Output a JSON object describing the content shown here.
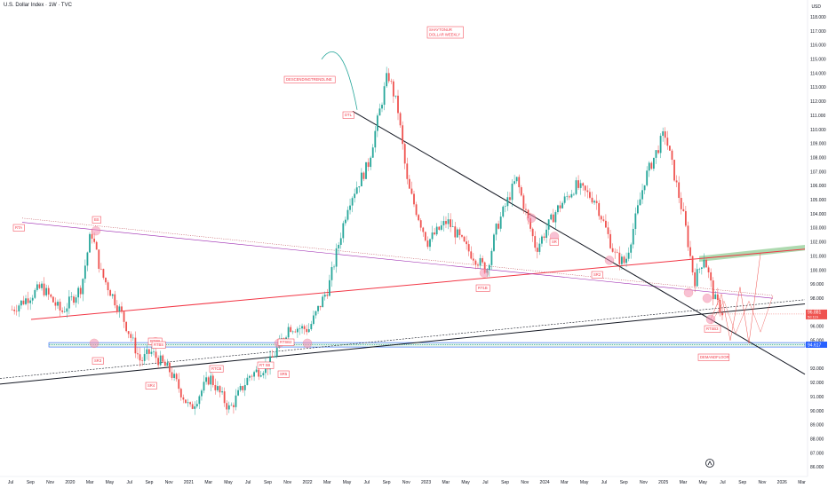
{
  "header": {
    "symbol_line": "U.S. Dollar Index · 1W · TVC"
  },
  "axis": {
    "currency": "USD"
  },
  "colors": {
    "bull": "#26a69a",
    "bear": "#ef5350",
    "trend_black": "#131722",
    "trend_red": "#f23645",
    "accent_red": "#f23645",
    "accent_blue": "#2962ff",
    "green_zone": "#a5d6a7"
  },
  "chart_data": {
    "type": "candlestick",
    "title": "U.S. Dollar Index · 1W · TVC",
    "ylim": [
      85.5,
      118.8
    ],
    "xlim": [
      "2019-07",
      "2026-03"
    ],
    "y_ticks": [
      "86.000",
      "87.000",
      "88.000",
      "89.000",
      "90.000",
      "91.000",
      "92.000",
      "93.000",
      "95.000",
      "96.000",
      "97.000",
      "98.000",
      "99.000",
      "100.000",
      "101.000",
      "102.000",
      "103.000",
      "104.000",
      "105.000",
      "106.000",
      "107.000",
      "108.000",
      "109.000",
      "110.000",
      "111.000",
      "112.000",
      "113.000",
      "114.000",
      "115.000",
      "116.000",
      "117.000",
      "118.000"
    ],
    "x_ticks": [
      "Jul",
      "Sep",
      "Nov",
      "2020",
      "Mar",
      "May",
      "Jul",
      "Sep",
      "Nov",
      "2021",
      "Mar",
      "May",
      "Jul",
      "Sep",
      "Nov",
      "2022",
      "Mar",
      "May",
      "Jul",
      "Sep",
      "Nov",
      "2023",
      "Mar",
      "May",
      "Jul",
      "Sep",
      "Nov",
      "2024",
      "Mar",
      "May",
      "Jul",
      "Sep",
      "Nov",
      "2025",
      "Mar",
      "May",
      "Jul",
      "Sep",
      "Nov",
      "2026",
      "Mar"
    ],
    "price_path": [
      [
        "2019-07",
        97.2
      ],
      [
        "2019-10",
        98.8
      ],
      [
        "2019-12",
        97.0
      ],
      [
        "2020-02",
        98.8
      ],
      [
        "2020-03",
        102.8
      ],
      [
        "2020-04",
        99.8
      ],
      [
        "2020-06",
        97.0
      ],
      [
        "2020-08",
        93.5
      ],
      [
        "2020-09",
        94.2
      ],
      [
        "2020-11",
        92.8
      ],
      [
        "2021-01",
        90.1
      ],
      [
        "2021-03",
        92.4
      ],
      [
        "2021-05",
        90.1
      ],
      [
        "2021-07",
        92.5
      ],
      [
        "2021-09",
        93.3
      ],
      [
        "2021-11",
        96.0
      ],
      [
        "2022-01",
        95.8
      ],
      [
        "2022-03",
        98.8
      ],
      [
        "2022-05",
        104.8
      ],
      [
        "2022-07",
        107.5
      ],
      [
        "2022-09",
        114.0
      ],
      [
        "2022-10",
        111.5
      ],
      [
        "2022-11",
        106.0
      ],
      [
        "2023-01",
        102.0
      ],
      [
        "2023-03",
        103.5
      ],
      [
        "2023-05",
        101.5
      ],
      [
        "2023-07",
        100.0
      ],
      [
        "2023-08",
        103.0
      ],
      [
        "2023-10",
        106.5
      ],
      [
        "2023-12",
        101.5
      ],
      [
        "2024-02",
        104.2
      ],
      [
        "2024-04",
        106.0
      ],
      [
        "2024-06",
        105.0
      ],
      [
        "2024-08",
        101.0
      ],
      [
        "2024-09",
        100.5
      ],
      [
        "2024-11",
        106.5
      ],
      [
        "2025-01",
        109.8
      ],
      [
        "2025-03",
        103.5
      ],
      [
        "2025-04",
        99.2
      ],
      [
        "2025-05",
        101.0
      ],
      [
        "2025-06",
        98.0
      ],
      [
        "2025-07",
        96.8
      ]
    ],
    "last_price": {
      "value": 96.881,
      "label": "96.881",
      "sub_label": "5d 11h"
    },
    "level_label": "94.617",
    "annotations": {
      "title_box": [
        "SHAYTONUR",
        "DOLLAR WEEKLY"
      ],
      "descending": "DESCENDINGTRENDLINE",
      "demand": "DEMANDFLOOR",
      "marks": [
        "DTL",
        "BS",
        "RTA",
        "RTSB",
        "RTBS",
        "RTCB",
        "RT SB",
        "RTSB2",
        "RT1B",
        "SR",
        "SR2",
        "SR3",
        "SR4",
        "SR5",
        "RTSB3"
      ]
    }
  }
}
